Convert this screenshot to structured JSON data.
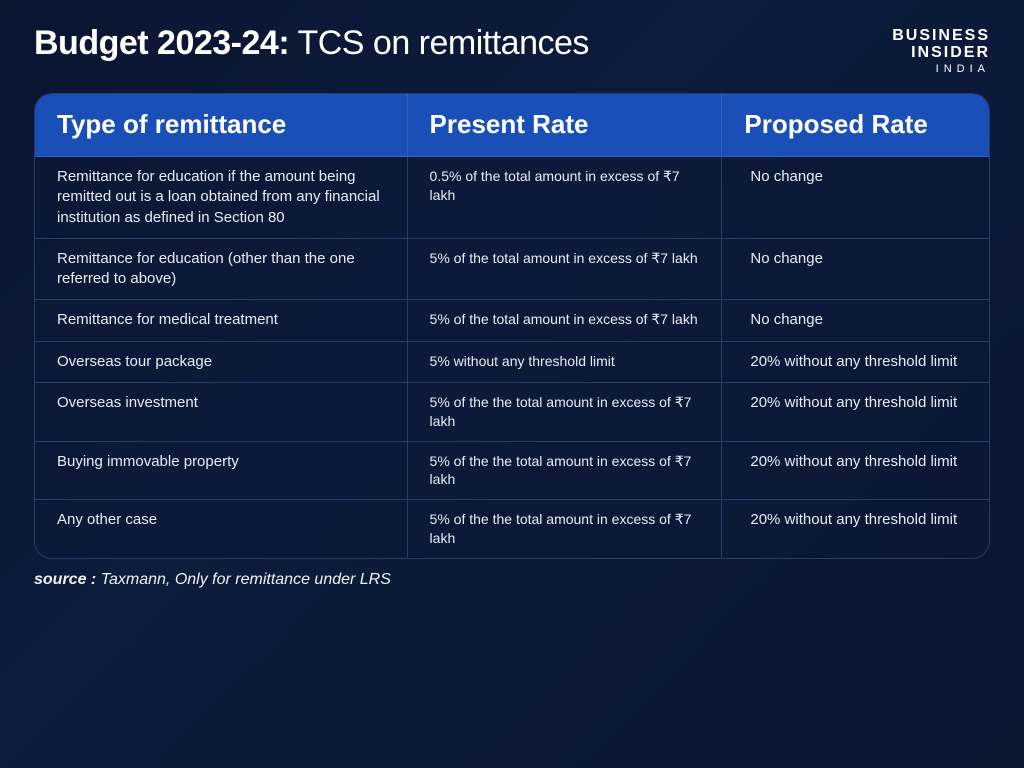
{
  "header": {
    "title_bold": "Budget 2023-24:",
    "title_rest": " TCS on remittances",
    "brand_line1": "BUSINESS",
    "brand_line2": "INSIDER",
    "brand_sub": "INDIA"
  },
  "table": {
    "columns": [
      "Type of remittance",
      "Present Rate",
      "Proposed Rate"
    ],
    "rows": [
      [
        "Remittance for education if the amount being remitted out is a loan obtained from any financial institution as defined in Section 80",
        "0.5% of the total amount in excess of ₹7 lakh",
        "No change"
      ],
      [
        "Remittance for education (other than the one referred to above)",
        "5% of the total amount in excess of ₹7 lakh",
        "No change"
      ],
      [
        "Remittance for medical treatment",
        "5% of the total amount in excess of ₹7 lakh",
        "No change"
      ],
      [
        "Overseas tour package",
        "5% without any threshold limit",
        "20% without any threshold limit"
      ],
      [
        "Overseas investment",
        "5% of the the total amount in excess of ₹7 lakh",
        "20% without any threshold limit"
      ],
      [
        "Buying immovable property",
        "5% of the the total amount in excess of ₹7 lakh",
        "20% without any threshold limit"
      ],
      [
        "Any other case",
        "5% of the the total amount in excess of ₹7 lakh",
        "20% without any threshold limit"
      ]
    ]
  },
  "source": {
    "label": "source :",
    "text": "  Taxmann, Only for remittance under LRS"
  },
  "colors": {
    "page_bg_start": "#0a1530",
    "page_bg_end": "#0d1b3d",
    "header_bg": "#1a4fb8",
    "border": "rgba(90, 130, 200, 0.35)",
    "text": "#ffffff",
    "cell_text": "#e8ecf5"
  }
}
